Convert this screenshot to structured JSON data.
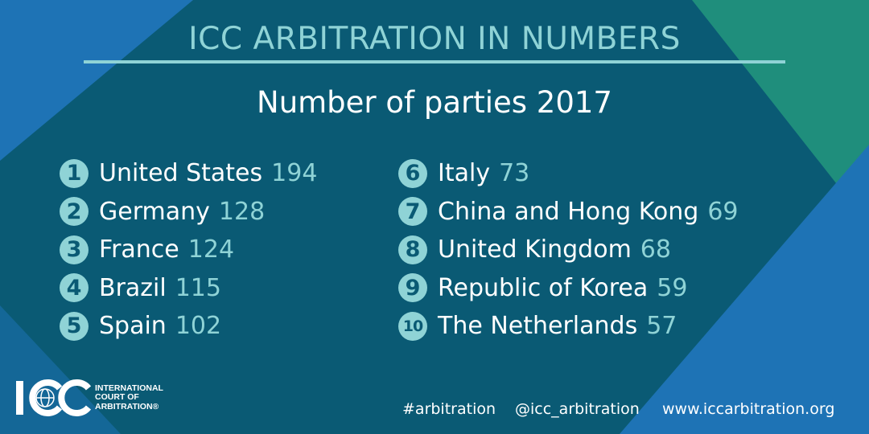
{
  "header": {
    "title": "ICC ARBITRATION IN NUMBERS",
    "subtitle": "Number of parties 2017"
  },
  "colors": {
    "background": "#0a5a74",
    "accent": "#8fd3d6",
    "blue_corner": "#1e73b5",
    "green_corner": "#1f8e7c",
    "text": "#ffffff"
  },
  "rankings": [
    {
      "rank": "1",
      "country": "United States",
      "value": "194"
    },
    {
      "rank": "2",
      "country": "Germany",
      "value": "128"
    },
    {
      "rank": "3",
      "country": "France",
      "value": "124"
    },
    {
      "rank": "4",
      "country": "Brazil",
      "value": "115"
    },
    {
      "rank": "5",
      "country": "Spain",
      "value": "102"
    },
    {
      "rank": "6",
      "country": "Italy",
      "value": "73"
    },
    {
      "rank": "7",
      "country": "China and Hong Kong",
      "value": "69"
    },
    {
      "rank": "8",
      "country": "United Kingdom",
      "value": "68"
    },
    {
      "rank": "9",
      "country": "Republic of Korea",
      "value": "59"
    },
    {
      "rank": "10",
      "country": "The Netherlands",
      "value": "57"
    }
  ],
  "logo": {
    "mark": "ICC",
    "line1": "INTERNATIONAL",
    "line2": "COURT OF",
    "line3": "ARBITRATION®"
  },
  "footer": {
    "hashtag": "#arbitration",
    "handle": "@icc_arbitration",
    "website": "www.iccarbitration.org"
  }
}
